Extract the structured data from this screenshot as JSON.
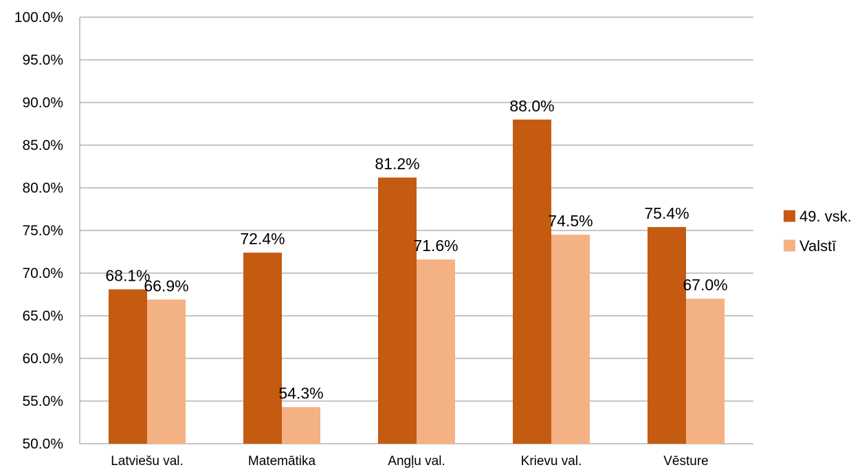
{
  "chart_data": {
    "type": "bar",
    "categories": [
      "Latviešu val.",
      "Matemātika",
      "Angļu val.",
      "Krievu val.",
      "Vēsture"
    ],
    "series": [
      {
        "name": "49. vsk.",
        "values": [
          68.1,
          72.4,
          81.2,
          88.0,
          75.4
        ],
        "color": "#C55A11"
      },
      {
        "name": "Valstī",
        "values": [
          66.9,
          54.3,
          71.6,
          74.5,
          67.0
        ],
        "color": "#F4B183"
      }
    ],
    "data_labels": [
      [
        "68.1%",
        "72.4%",
        "81.2%",
        "88.0%",
        "75.4%"
      ],
      [
        "66.9%",
        "54.3%",
        "71.6%",
        "74.5%",
        "67.0%"
      ]
    ],
    "y_ticks": [
      "50.0%",
      "55.0%",
      "60.0%",
      "65.0%",
      "70.0%",
      "75.0%",
      "80.0%",
      "85.0%",
      "90.0%",
      "95.0%",
      "100.0%"
    ],
    "ylim": [
      50,
      100
    ],
    "y_step": 5,
    "grid": true,
    "legend": "right",
    "title": "",
    "xlabel": "",
    "ylabel": ""
  }
}
